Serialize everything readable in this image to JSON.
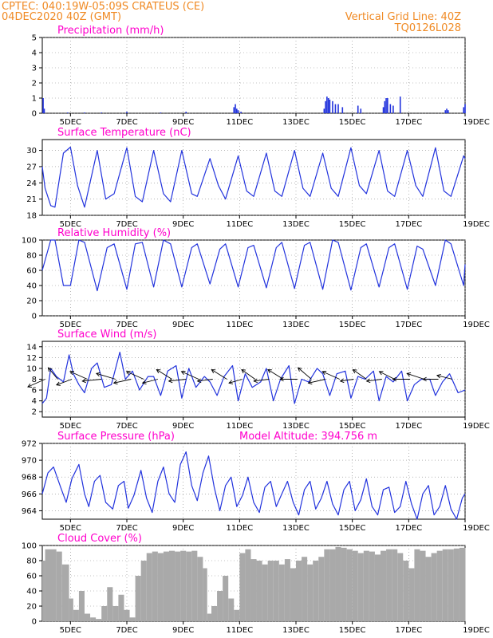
{
  "header": {
    "line1": "CPTEC:   040:19W-05:09S   CRATEUS (CE)",
    "line2": "04DEC2020 40Z (GMT)",
    "grid_note": "Vertical Grid Line: 40Z",
    "model_code": "TQ0126L028"
  },
  "colors": {
    "header": "#f08a24",
    "title": "#ff00cc",
    "line": "#2233dd",
    "cloud": "#a9a9a9",
    "grid": "#888888"
  },
  "x_ticks": [
    "5DEC",
    "7DEC",
    "9DEC",
    "11DEC",
    "13DEC",
    "15DEC",
    "17DEC",
    "19DEC"
  ],
  "chart_data": [
    {
      "type": "bar",
      "title": "Precipitation (mm/h)",
      "ylim": [
        0,
        5
      ],
      "yticks": [
        "0",
        "1",
        "2",
        "3",
        "4",
        "5"
      ],
      "x": [
        4.03,
        4.07,
        4.9,
        5.5,
        6.1,
        7.0,
        8.2,
        9.1,
        10.8,
        10.85,
        10.9,
        10.95,
        11.05,
        14.0,
        14.05,
        14.1,
        14.15,
        14.2,
        14.3,
        14.4,
        14.5,
        14.65,
        15.2,
        15.3,
        16.1,
        16.15,
        16.2,
        16.25,
        16.35,
        16.45,
        16.7,
        18.3,
        18.35,
        18.4,
        18.95,
        19.0
      ],
      "values": [
        1.0,
        0.3,
        0.05,
        0.05,
        0.05,
        0.1,
        0.05,
        0.1,
        0.4,
        0.6,
        0.3,
        0.2,
        0.1,
        0.3,
        0.8,
        1.1,
        1.0,
        0.9,
        0.8,
        0.6,
        0.6,
        0.4,
        0.5,
        0.3,
        0.4,
        0.8,
        1.0,
        1.0,
        0.6,
        0.5,
        1.1,
        0.2,
        0.3,
        0.2,
        0.4,
        0.6
      ]
    },
    {
      "type": "line",
      "title": "Surface Temperature (nC)",
      "ylim": [
        18,
        32
      ],
      "yticks": [
        "18",
        "21",
        "24",
        "27",
        "30"
      ],
      "x": [
        4.0,
        4.1,
        4.3,
        4.45,
        4.75,
        5.0,
        5.25,
        5.5,
        5.95,
        6.25,
        6.55,
        7.0,
        7.3,
        7.55,
        7.95,
        8.3,
        8.55,
        8.95,
        9.3,
        9.5,
        9.95,
        10.25,
        10.5,
        10.95,
        11.25,
        11.5,
        11.95,
        12.25,
        12.5,
        12.95,
        13.25,
        13.5,
        13.95,
        14.25,
        14.5,
        14.95,
        15.25,
        15.5,
        15.95,
        16.25,
        16.5,
        16.95,
        17.25,
        17.5,
        17.95,
        18.25,
        18.5,
        18.95,
        19.0
      ],
      "values": [
        27.0,
        23.0,
        19.8,
        19.5,
        29.5,
        30.6,
        23.5,
        19.5,
        30.0,
        21.0,
        22.0,
        30.5,
        21.5,
        20.5,
        30.0,
        22.0,
        20.5,
        30.0,
        22.0,
        21.5,
        28.5,
        23.5,
        21.0,
        29.0,
        22.5,
        21.5,
        29.5,
        22.5,
        21.5,
        30.0,
        23.0,
        21.5,
        29.5,
        23.0,
        21.5,
        30.5,
        23.5,
        22.0,
        30.0,
        22.5,
        21.5,
        30.0,
        23.5,
        21.5,
        30.5,
        22.5,
        21.5,
        29.0,
        28.5
      ]
    },
    {
      "type": "line",
      "title": "Relative Humidity (%)",
      "ylim": [
        0,
        100
      ],
      "yticks": [
        "0",
        "20",
        "40",
        "60",
        "80",
        "100"
      ],
      "x": [
        4.0,
        4.3,
        4.45,
        4.75,
        5.0,
        5.3,
        5.5,
        5.95,
        6.3,
        6.55,
        7.0,
        7.3,
        7.55,
        7.95,
        8.3,
        8.55,
        8.95,
        9.3,
        9.5,
        9.95,
        10.3,
        10.5,
        10.95,
        11.3,
        11.5,
        11.95,
        12.3,
        12.5,
        12.95,
        13.3,
        13.5,
        13.95,
        14.3,
        14.5,
        14.95,
        15.3,
        15.5,
        15.95,
        16.3,
        16.5,
        16.95,
        17.3,
        17.5,
        17.95,
        18.3,
        18.5,
        18.95,
        19.0
      ],
      "values": [
        60,
        100,
        100,
        40,
        40,
        100,
        97,
        33,
        90,
        95,
        35,
        95,
        97,
        38,
        100,
        95,
        38,
        90,
        95,
        42,
        88,
        95,
        38,
        90,
        93,
        37,
        90,
        97,
        36,
        93,
        97,
        35,
        100,
        97,
        34,
        90,
        95,
        38,
        90,
        95,
        35,
        92,
        88,
        40,
        100,
        95,
        40,
        68
      ]
    },
    {
      "type": "line",
      "title": "Surface Wind (m/s)",
      "ylim": [
        1,
        15
      ],
      "yticks": [
        "2",
        "4",
        "6",
        "8",
        "10",
        "12",
        "14"
      ],
      "x": [
        4.0,
        4.15,
        4.3,
        4.5,
        4.75,
        4.95,
        5.1,
        5.3,
        5.5,
        5.75,
        5.95,
        6.2,
        6.45,
        6.75,
        6.95,
        7.2,
        7.45,
        7.75,
        7.95,
        8.2,
        8.45,
        8.75,
        8.95,
        9.2,
        9.45,
        9.75,
        9.95,
        10.2,
        10.45,
        10.75,
        10.95,
        11.2,
        11.45,
        11.75,
        11.95,
        12.2,
        12.45,
        12.75,
        12.95,
        13.2,
        13.45,
        13.75,
        13.95,
        14.2,
        14.45,
        14.75,
        14.95,
        15.2,
        15.45,
        15.75,
        15.95,
        16.2,
        16.45,
        16.75,
        16.95,
        17.2,
        17.45,
        17.75,
        17.95,
        18.2,
        18.45,
        18.75,
        19.0
      ],
      "values": [
        3.5,
        4.5,
        10.0,
        8.5,
        7.5,
        12.5,
        9.0,
        7.0,
        5.5,
        10.0,
        11.0,
        6.5,
        7.0,
        13.0,
        8.0,
        9.5,
        6.0,
        8.5,
        8.5,
        5.0,
        9.5,
        10.5,
        4.5,
        10.0,
        6.5,
        8.5,
        7.5,
        5.0,
        8.5,
        10.5,
        4.0,
        9.0,
        6.5,
        7.5,
        10.0,
        4.0,
        8.0,
        10.5,
        3.5,
        8.0,
        7.5,
        10.0,
        9.0,
        5.0,
        9.0,
        9.5,
        4.5,
        8.5,
        8.0,
        9.5,
        4.0,
        8.5,
        7.5,
        9.5,
        4.0,
        7.0,
        8.0,
        8.0,
        5.0,
        7.5,
        9.0,
        5.5,
        6.0
      ],
      "arrows": {
        "x": [
          4.1,
          4.55,
          5.05,
          5.6,
          6.1,
          6.6,
          7.15,
          7.6,
          8.1,
          8.6,
          9.1,
          9.55,
          10.05,
          10.55,
          11.1,
          11.55,
          12.05,
          12.55,
          13.05,
          13.55,
          14.05,
          14.55,
          15.05,
          15.5,
          16.05,
          16.5,
          17.05,
          17.55,
          18.05,
          18.55
        ],
        "u": [
          -0.9,
          -0.5,
          -0.8,
          -0.9,
          -1.0,
          -1.0,
          -0.9,
          -0.9,
          -0.8,
          -0.8,
          -0.9,
          -0.9,
          -0.8,
          -0.8,
          -0.7,
          -0.7,
          -0.8,
          -0.8,
          -0.9,
          -0.7,
          -0.9,
          -0.9,
          -0.7,
          -0.7,
          -0.8,
          -0.8,
          -0.9,
          -0.9,
          -0.8,
          -0.8
        ],
        "v": [
          0.4,
          -0.6,
          0.3,
          -0.4,
          0.1,
          -0.3,
          0.2,
          -0.4,
          0.2,
          -0.5,
          0.1,
          -0.4,
          0.1,
          -0.5,
          0.2,
          -0.5,
          0.1,
          -0.5,
          0.0,
          -0.6,
          0.2,
          -0.4,
          0.1,
          -0.5,
          0.1,
          -0.4,
          0.0,
          -0.3,
          0.0,
          -0.2
        ]
      }
    },
    {
      "type": "line",
      "title": "Surface Pressure (hPa)",
      "annotation": "Model Altitude: 394.756 m",
      "ylim": [
        963,
        972
      ],
      "yticks": [
        "964",
        "966",
        "968",
        "970",
        "972"
      ],
      "x": [
        4.0,
        4.2,
        4.4,
        4.65,
        4.85,
        5.05,
        5.3,
        5.5,
        5.65,
        5.85,
        6.05,
        6.25,
        6.5,
        6.7,
        6.9,
        7.05,
        7.25,
        7.5,
        7.7,
        7.9,
        8.1,
        8.3,
        8.5,
        8.7,
        8.9,
        9.1,
        9.3,
        9.5,
        9.7,
        9.9,
        10.1,
        10.3,
        10.5,
        10.7,
        10.9,
        11.1,
        11.3,
        11.5,
        11.7,
        11.9,
        12.1,
        12.3,
        12.5,
        12.7,
        12.9,
        13.1,
        13.3,
        13.5,
        13.7,
        13.9,
        14.1,
        14.3,
        14.5,
        14.7,
        14.9,
        15.1,
        15.3,
        15.5,
        15.7,
        15.9,
        16.1,
        16.3,
        16.5,
        16.7,
        16.9,
        17.1,
        17.3,
        17.5,
        17.7,
        17.9,
        18.1,
        18.3,
        18.5,
        18.7,
        18.9,
        19.0
      ],
      "values": [
        966.0,
        968.5,
        969.2,
        966.8,
        965.0,
        967.8,
        969.5,
        966.0,
        964.5,
        967.5,
        968.2,
        965.0,
        964.2,
        967.0,
        967.5,
        964.3,
        965.8,
        968.8,
        965.5,
        963.8,
        967.5,
        969.2,
        966.0,
        965.0,
        969.5,
        971.0,
        967.0,
        965.2,
        968.5,
        970.5,
        966.8,
        964.0,
        967.0,
        968.0,
        964.5,
        965.8,
        968.0,
        965.0,
        963.8,
        966.8,
        967.5,
        964.5,
        966.0,
        967.5,
        965.0,
        963.5,
        966.5,
        967.5,
        964.2,
        965.5,
        967.5,
        964.8,
        963.5,
        966.5,
        967.5,
        964.0,
        965.3,
        967.8,
        964.5,
        963.5,
        966.5,
        966.8,
        963.8,
        964.5,
        967.5,
        964.8,
        963.0,
        966.0,
        967.0,
        963.5,
        964.5,
        967.0,
        964.2,
        963.0,
        965.5,
        966.0
      ]
    },
    {
      "type": "area",
      "title": "Cloud Cover (%)",
      "ylim": [
        0,
        100
      ],
      "yticks": [
        "0",
        "20",
        "40",
        "60",
        "80",
        "100"
      ],
      "x": [
        4.0,
        4.1,
        4.5,
        4.7,
        4.95,
        5.1,
        5.3,
        5.5,
        5.7,
        5.9,
        6.1,
        6.3,
        6.5,
        6.7,
        6.9,
        7.1,
        7.3,
        7.5,
        7.7,
        7.9,
        8.1,
        8.3,
        8.5,
        8.7,
        8.9,
        9.1,
        9.3,
        9.5,
        9.7,
        9.85,
        10.0,
        10.2,
        10.4,
        10.6,
        10.8,
        11.0,
        11.2,
        11.4,
        11.6,
        11.8,
        12.0,
        12.2,
        12.4,
        12.6,
        12.8,
        13.0,
        13.2,
        13.4,
        13.6,
        13.8,
        14.0,
        14.2,
        14.4,
        14.6,
        14.8,
        15.0,
        15.2,
        15.4,
        15.6,
        15.8,
        16.0,
        16.2,
        16.4,
        16.6,
        16.8,
        17.0,
        17.2,
        17.4,
        17.6,
        17.8,
        18.0,
        18.2,
        18.4,
        18.6,
        18.8,
        19.0
      ],
      "values": [
        80,
        95,
        92,
        75,
        30,
        15,
        40,
        10,
        5,
        3,
        20,
        45,
        20,
        35,
        15,
        5,
        60,
        80,
        90,
        92,
        90,
        92,
        93,
        92,
        93,
        92,
        93,
        85,
        70,
        10,
        20,
        40,
        60,
        30,
        15,
        90,
        95,
        82,
        80,
        75,
        80,
        80,
        75,
        82,
        70,
        80,
        85,
        75,
        80,
        85,
        95,
        95,
        98,
        97,
        95,
        93,
        90,
        93,
        92,
        88,
        93,
        95,
        95,
        90,
        80,
        70,
        95,
        93,
        85,
        90,
        93,
        95,
        95,
        96,
        97,
        97
      ]
    }
  ]
}
